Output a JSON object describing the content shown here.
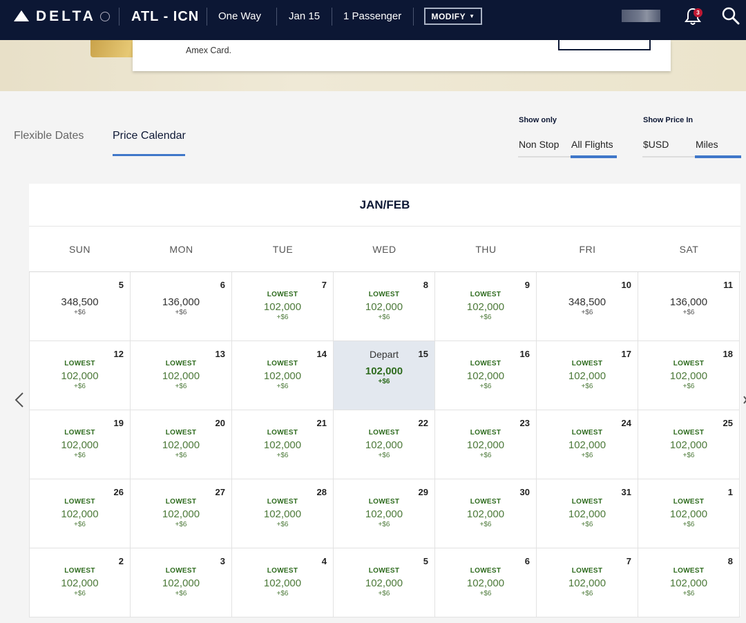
{
  "header": {
    "brand": "DELTA",
    "route": "ATL - ICN",
    "trip_type": "One Way",
    "date": "Jan 15",
    "passengers": "1 Passenger",
    "modify_label": "MODIFY",
    "notification_count": "3"
  },
  "promo": {
    "text": "Amex Card."
  },
  "tabs": {
    "flexible": "Flexible Dates",
    "price_calendar": "Price Calendar"
  },
  "filters": {
    "show_only_label": "Show only",
    "non_stop": "Non Stop",
    "all_flights": "All Flights",
    "show_price_label": "Show Price In",
    "usd": "$USD",
    "miles": "Miles"
  },
  "calendar": {
    "month": "JAN/FEB",
    "weekdays": [
      "SUN",
      "MON",
      "TUE",
      "WED",
      "THU",
      "FRI",
      "SAT"
    ],
    "lowest_label": "LOWEST",
    "depart_label": "Depart",
    "weeks": [
      [
        {
          "day": "5",
          "price": "348,500",
          "fee": "+$6",
          "lowest": false
        },
        {
          "day": "6",
          "price": "136,000",
          "fee": "+$6",
          "lowest": false
        },
        {
          "day": "7",
          "price": "102,000",
          "fee": "+$6",
          "lowest": true
        },
        {
          "day": "8",
          "price": "102,000",
          "fee": "+$6",
          "lowest": true
        },
        {
          "day": "9",
          "price": "102,000",
          "fee": "+$6",
          "lowest": true
        },
        {
          "day": "10",
          "price": "348,500",
          "fee": "+$6",
          "lowest": false
        },
        {
          "day": "11",
          "price": "136,000",
          "fee": "+$6",
          "lowest": false
        }
      ],
      [
        {
          "day": "12",
          "price": "102,000",
          "fee": "+$6",
          "lowest": true
        },
        {
          "day": "13",
          "price": "102,000",
          "fee": "+$6",
          "lowest": true
        },
        {
          "day": "14",
          "price": "102,000",
          "fee": "+$6",
          "lowest": true
        },
        {
          "day": "15",
          "price": "102,000",
          "fee": "+$6",
          "lowest": true,
          "selected": true
        },
        {
          "day": "16",
          "price": "102,000",
          "fee": "+$6",
          "lowest": true
        },
        {
          "day": "17",
          "price": "102,000",
          "fee": "+$6",
          "lowest": true
        },
        {
          "day": "18",
          "price": "102,000",
          "fee": "+$6",
          "lowest": true
        }
      ],
      [
        {
          "day": "19",
          "price": "102,000",
          "fee": "+$6",
          "lowest": true
        },
        {
          "day": "20",
          "price": "102,000",
          "fee": "+$6",
          "lowest": true
        },
        {
          "day": "21",
          "price": "102,000",
          "fee": "+$6",
          "lowest": true
        },
        {
          "day": "22",
          "price": "102,000",
          "fee": "+$6",
          "lowest": true
        },
        {
          "day": "23",
          "price": "102,000",
          "fee": "+$6",
          "lowest": true
        },
        {
          "day": "24",
          "price": "102,000",
          "fee": "+$6",
          "lowest": true
        },
        {
          "day": "25",
          "price": "102,000",
          "fee": "+$6",
          "lowest": true
        }
      ],
      [
        {
          "day": "26",
          "price": "102,000",
          "fee": "+$6",
          "lowest": true
        },
        {
          "day": "27",
          "price": "102,000",
          "fee": "+$6",
          "lowest": true
        },
        {
          "day": "28",
          "price": "102,000",
          "fee": "+$6",
          "lowest": true
        },
        {
          "day": "29",
          "price": "102,000",
          "fee": "+$6",
          "lowest": true
        },
        {
          "day": "30",
          "price": "102,000",
          "fee": "+$6",
          "lowest": true
        },
        {
          "day": "31",
          "price": "102,000",
          "fee": "+$6",
          "lowest": true
        },
        {
          "day": "1",
          "price": "102,000",
          "fee": "+$6",
          "lowest": true
        }
      ],
      [
        {
          "day": "2",
          "price": "102,000",
          "fee": "+$6",
          "lowest": true
        },
        {
          "day": "3",
          "price": "102,000",
          "fee": "+$6",
          "lowest": true
        },
        {
          "day": "4",
          "price": "102,000",
          "fee": "+$6",
          "lowest": true
        },
        {
          "day": "5",
          "price": "102,000",
          "fee": "+$6",
          "lowest": true
        },
        {
          "day": "6",
          "price": "102,000",
          "fee": "+$6",
          "lowest": true
        },
        {
          "day": "7",
          "price": "102,000",
          "fee": "+$6",
          "lowest": true
        },
        {
          "day": "8",
          "price": "102,000",
          "fee": "+$6",
          "lowest": true
        }
      ]
    ]
  },
  "colors": {
    "header_bg": "#0c1734",
    "accent_blue": "#3f77c9",
    "lowest_green": "#2e6b1e",
    "selected_bg": "#e3e8ef",
    "badge_red": "#c01933"
  }
}
